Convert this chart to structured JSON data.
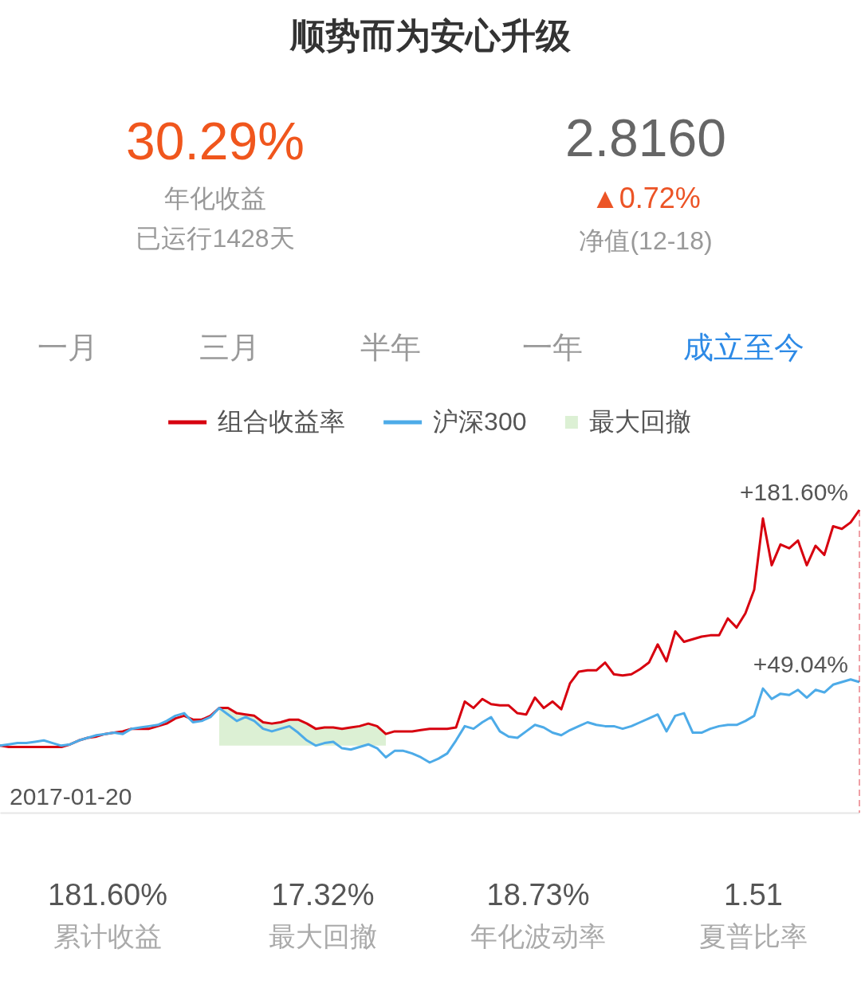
{
  "chart_data": {
    "type": "line",
    "title": "顺势而为安心升级",
    "annotations": [
      "30.29%",
      "年化收益",
      "已运行1428天",
      "2.8160",
      "▲0.72%",
      "净值(12-18)",
      "一月",
      "三月",
      "半年",
      "一年",
      "成立至今",
      "2017-01-20",
      "181.60%",
      "累计收益",
      "17.32%",
      "最大回撤",
      "18.73%",
      "年化波动率",
      "1.51",
      "夏普比率"
    ],
    "categories": [
      null,
      null,
      null,
      null,
      null,
      null,
      null,
      null,
      null,
      null,
      null,
      null,
      null,
      null,
      null,
      null,
      null,
      null,
      null,
      null,
      null,
      null,
      null,
      null,
      null,
      null,
      null,
      null,
      null,
      null,
      null,
      null,
      null,
      null,
      null,
      null,
      null,
      null,
      null,
      null,
      null,
      null,
      null,
      null,
      null,
      null,
      null,
      null,
      null,
      null,
      null,
      null,
      null,
      null,
      null,
      null,
      null,
      null,
      null,
      null,
      null,
      null,
      null,
      null,
      null,
      null,
      null,
      null,
      null,
      null,
      null,
      null,
      null,
      null,
      null,
      null,
      null,
      null,
      null,
      null,
      null,
      null,
      null,
      null,
      null,
      null,
      null,
      null,
      null,
      null,
      null,
      null,
      null,
      null,
      null,
      null,
      null,
      null,
      null
    ],
    "series": [
      {
        "name": "组合收益率",
        "color": "#d7000f",
        "values": [
          0,
          -1,
          -1,
          -1,
          -1,
          -1,
          -1,
          -1,
          1,
          4,
          6,
          7,
          9,
          10,
          11,
          13,
          13,
          13,
          15,
          17,
          21,
          23,
          20,
          20,
          23,
          29,
          29,
          25,
          24,
          23,
          18,
          17,
          18,
          20,
          20,
          17,
          13,
          14,
          14,
          13,
          14,
          15,
          17,
          15,
          9,
          11,
          11,
          11,
          12,
          13,
          13,
          13,
          14,
          34,
          29,
          36,
          32,
          31,
          31,
          25,
          24,
          37,
          29,
          34,
          28,
          48,
          57,
          58,
          58,
          64,
          55,
          54,
          55,
          59,
          64,
          78,
          65,
          88,
          80,
          82,
          84,
          85,
          85,
          98,
          91,
          102,
          120,
          175,
          139,
          155,
          152,
          158,
          139,
          154,
          147,
          169,
          167,
          172,
          181.6
        ],
        "value_labels": [
          null,
          null,
          null,
          null,
          null,
          null,
          null,
          null,
          null,
          null,
          null,
          null,
          null,
          null,
          null,
          null,
          null,
          null,
          null,
          null,
          null,
          null,
          null,
          null,
          null,
          null,
          null,
          null,
          null,
          null,
          null,
          null,
          null,
          null,
          null,
          null,
          null,
          null,
          null,
          null,
          null,
          null,
          null,
          null,
          null,
          null,
          null,
          null,
          null,
          null,
          null,
          null,
          null,
          null,
          null,
          null,
          null,
          null,
          null,
          null,
          null,
          null,
          null,
          null,
          null,
          null,
          null,
          null,
          null,
          null,
          null,
          null,
          null,
          null,
          null,
          null,
          null,
          null,
          null,
          null,
          null,
          null,
          null,
          null,
          null,
          null,
          null,
          null,
          null,
          null,
          null,
          null,
          null,
          null,
          null,
          null,
          null,
          null,
          "+181.60%"
        ]
      },
      {
        "name": "沪深300",
        "color": "#4dabe8",
        "values": [
          0,
          1,
          2,
          2,
          3,
          4,
          2,
          0,
          1,
          4,
          6,
          8,
          9,
          10,
          9,
          13,
          14,
          15,
          16,
          19,
          23,
          25,
          18,
          19,
          22,
          29,
          24,
          19,
          22,
          19,
          13,
          11,
          13,
          15,
          10,
          4,
          0,
          2,
          3,
          -2,
          -3,
          -1,
          1,
          -2,
          -9,
          -4,
          -4,
          -6,
          -9,
          -13,
          -10,
          -6,
          4,
          15,
          13,
          18,
          22,
          11,
          7,
          6,
          11,
          16,
          14,
          10,
          8,
          12,
          15,
          18,
          16,
          15,
          15,
          13,
          15,
          18,
          21,
          24,
          11,
          23,
          25,
          10,
          10,
          13,
          15,
          16,
          16,
          19,
          23,
          44,
          36,
          40,
          39,
          43,
          37,
          43,
          41,
          47,
          49,
          51,
          49.04
        ],
        "value_labels": [
          null,
          null,
          null,
          null,
          null,
          null,
          null,
          null,
          null,
          null,
          null,
          null,
          null,
          null,
          null,
          null,
          null,
          null,
          null,
          null,
          null,
          null,
          null,
          null,
          null,
          null,
          null,
          null,
          null,
          null,
          null,
          null,
          null,
          null,
          null,
          null,
          null,
          null,
          null,
          null,
          null,
          null,
          null,
          null,
          null,
          null,
          null,
          null,
          null,
          null,
          null,
          null,
          null,
          null,
          null,
          null,
          null,
          null,
          null,
          null,
          null,
          null,
          null,
          null,
          null,
          null,
          null,
          null,
          null,
          null,
          null,
          null,
          null,
          null,
          null,
          null,
          null,
          null,
          null,
          null,
          null,
          null,
          null,
          null,
          null,
          null,
          null,
          null,
          null,
          null,
          null,
          null,
          null,
          null,
          null,
          null,
          null,
          null,
          "+49.04%"
        ]
      },
      {
        "name": "最大回撤",
        "type": "area",
        "color": "#dcf0d4",
        "values": [
          null,
          null,
          null,
          null,
          null,
          null,
          null,
          null,
          null,
          null,
          null,
          null,
          null,
          null,
          null,
          null,
          null,
          null,
          null,
          null,
          null,
          null,
          null,
          null,
          null,
          29,
          29,
          25,
          24,
          23,
          18,
          17,
          18,
          20,
          20,
          17,
          13,
          14,
          14,
          13,
          14,
          15,
          17,
          15,
          9,
          null,
          null,
          null,
          null,
          null,
          null,
          null,
          null,
          null,
          null,
          null,
          null,
          null,
          null,
          null,
          null,
          null,
          null,
          null,
          null,
          null,
          null,
          null,
          null,
          null,
          null,
          null,
          null,
          null,
          null,
          null,
          null,
          null,
          null,
          null,
          null,
          null,
          null,
          null,
          null,
          null,
          null,
          null,
          null,
          null,
          null,
          null,
          null,
          null,
          null,
          null,
          null,
          null,
          null
        ]
      }
    ],
    "legend": "top"
  }
}
